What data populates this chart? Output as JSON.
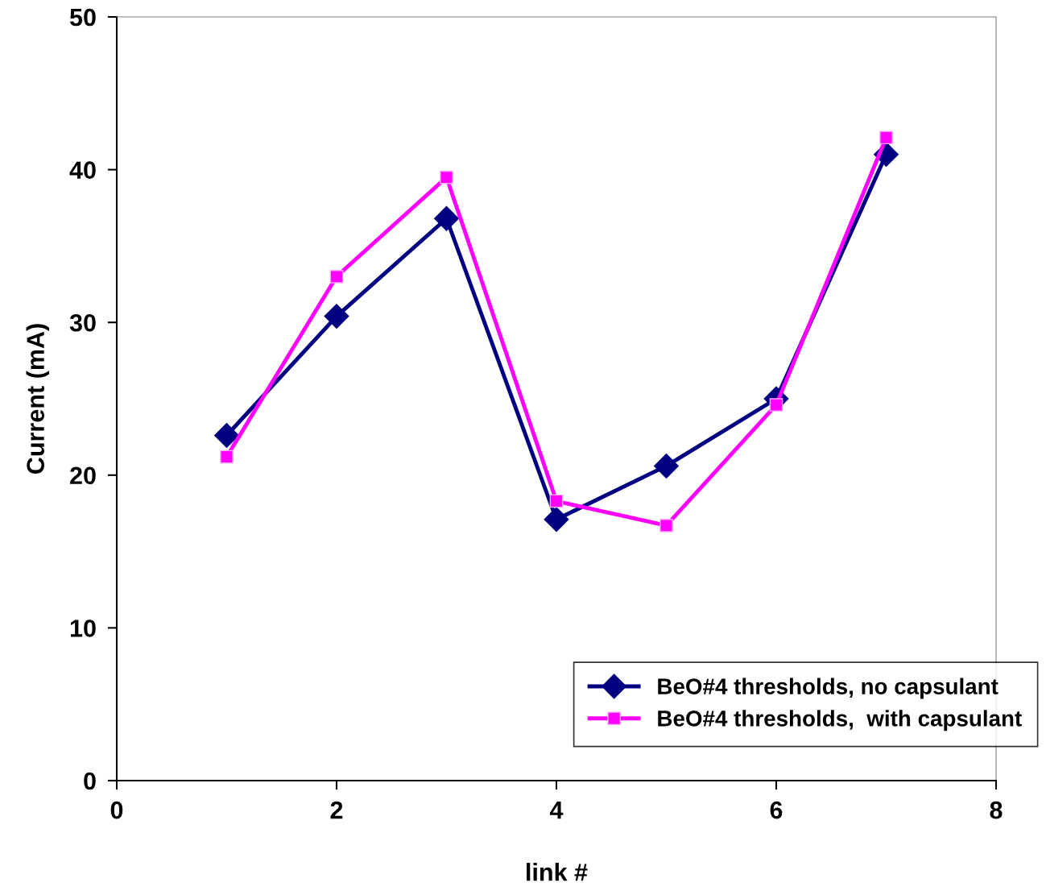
{
  "chart_data": {
    "type": "line",
    "xlabel": "link #",
    "ylabel": "Current (mA)",
    "x": [
      1,
      2,
      3,
      4,
      5,
      6,
      7
    ],
    "series": [
      {
        "name": "BeO#4 thresholds, no capsulant",
        "color": "#000080",
        "marker": "diamond",
        "values": [
          22.6,
          30.4,
          36.8,
          17.1,
          20.6,
          25.0,
          41.0
        ]
      },
      {
        "name": "BeO#4 thresholds,  with capsulant",
        "color": "#ff00ff",
        "marker": "square",
        "values": [
          21.2,
          33.0,
          39.5,
          18.3,
          16.7,
          24.6,
          42.1
        ]
      }
    ],
    "xlim": [
      0,
      8
    ],
    "xticks": [
      0,
      2,
      4,
      6,
      8
    ],
    "ylim": [
      0,
      50
    ],
    "yticks": [
      0,
      10,
      20,
      30,
      40,
      50
    ],
    "grid": false,
    "legend": "bottom right",
    "line_style": "solid"
  }
}
